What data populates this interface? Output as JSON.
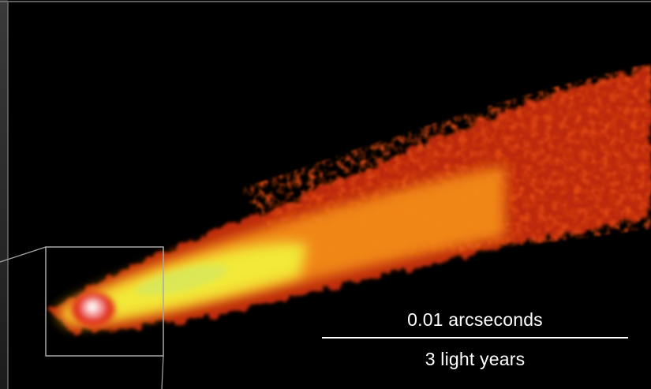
{
  "scale": {
    "angular_label": "0.01 arcseconds",
    "distance_label": "3 light years"
  },
  "colors": {
    "background": "#000000",
    "jet_outer": "#c8280a",
    "jet_mid": "#f07814",
    "jet_inner": "#f5f03c",
    "core": "#e84020",
    "frame_line": "#9a9a9a"
  }
}
